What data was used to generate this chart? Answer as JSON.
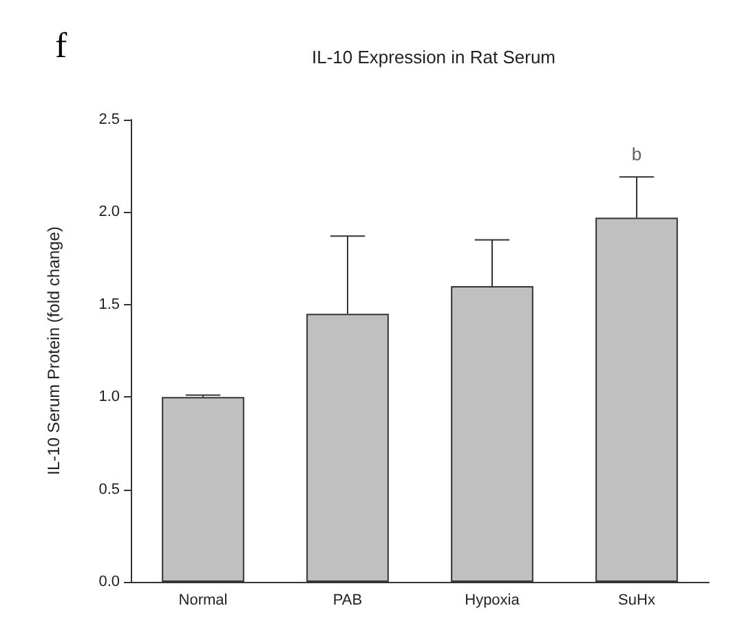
{
  "chart_data": {
    "type": "bar",
    "title": "IL-10 Expression in Rat Serum",
    "ylabel": "IL-10 Serum Protein (fold change)",
    "categories": [
      "Normal",
      "PAB",
      "Hypoxia",
      "SuHx"
    ],
    "values": [
      1.0,
      1.45,
      1.6,
      1.97
    ],
    "errors": [
      [
        1.0,
        1.01
      ],
      [
        1.45,
        1.87
      ],
      [
        1.6,
        1.85
      ],
      [
        1.97,
        2.19
      ]
    ],
    "color": "#c0c0c0",
    "ylim": [
      0,
      2.5
    ],
    "yticks": [
      {
        "value": 0,
        "label": "0.0"
      },
      0.5,
      {
        "value": 1,
        "label": "1.0"
      },
      1.5,
      {
        "value": 2,
        "label": "2.0"
      },
      2.5
    ],
    "annotations": [
      "f",
      {
        "text": "b",
        "x": "SuHx",
        "y": 2.19
      }
    ],
    "grid": false
  }
}
